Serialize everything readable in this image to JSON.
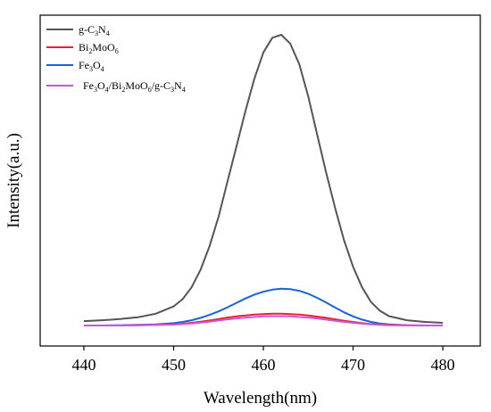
{
  "chart_data": {
    "type": "line",
    "xlabel": "Wavelength(nm)",
    "ylabel": "Intensity(a.u.)",
    "xlim": [
      435,
      482
    ],
    "ylim": [
      0,
      1.05
    ],
    "xticks": [
      440,
      450,
      460,
      470,
      480
    ],
    "yticks": [],
    "grid": false,
    "legend_position": "top-left",
    "x": [
      440,
      442,
      444,
      446,
      448,
      450,
      451,
      452,
      453,
      454,
      455,
      456,
      457,
      458,
      459,
      460,
      461,
      462,
      463,
      464,
      465,
      466,
      467,
      468,
      469,
      470,
      471,
      472,
      473,
      474,
      476,
      478,
      480
    ],
    "series": [
      {
        "name": "g-C3N4",
        "legend_parts": [
          [
            "g-C",
            ""
          ],
          [
            "3",
            "sub"
          ],
          [
            "N",
            ""
          ],
          [
            "4",
            "sub"
          ]
        ],
        "color": "#555555",
        "values": [
          0.015,
          0.018,
          0.022,
          0.028,
          0.04,
          0.065,
          0.09,
          0.13,
          0.19,
          0.27,
          0.37,
          0.49,
          0.61,
          0.73,
          0.84,
          0.93,
          0.98,
          0.99,
          0.96,
          0.89,
          0.78,
          0.65,
          0.52,
          0.4,
          0.29,
          0.2,
          0.13,
          0.08,
          0.05,
          0.032,
          0.018,
          0.012,
          0.009
        ]
      },
      {
        "name": "Bi2MoO6",
        "legend_parts": [
          [
            "Bi",
            ""
          ],
          [
            "2",
            "sub"
          ],
          [
            "MoO",
            ""
          ],
          [
            "6",
            "sub"
          ]
        ],
        "color": "#e8222e",
        "values": [
          0.0,
          0.0,
          0.0,
          0.001,
          0.002,
          0.004,
          0.006,
          0.009,
          0.013,
          0.017,
          0.022,
          0.027,
          0.031,
          0.034,
          0.037,
          0.039,
          0.04,
          0.04,
          0.039,
          0.037,
          0.034,
          0.03,
          0.026,
          0.021,
          0.016,
          0.012,
          0.008,
          0.005,
          0.003,
          0.002,
          0.001,
          0.0,
          0.0
        ]
      },
      {
        "name": "Fe3O4",
        "legend_parts": [
          [
            "Fe",
            ""
          ],
          [
            "3",
            "sub"
          ],
          [
            "O",
            ""
          ],
          [
            "4",
            "sub"
          ]
        ],
        "color": "#1565d8",
        "values": [
          0.0,
          0.0,
          0.001,
          0.002,
          0.004,
          0.008,
          0.012,
          0.018,
          0.026,
          0.036,
          0.048,
          0.062,
          0.077,
          0.092,
          0.105,
          0.115,
          0.122,
          0.125,
          0.124,
          0.118,
          0.108,
          0.094,
          0.078,
          0.061,
          0.045,
          0.031,
          0.02,
          0.012,
          0.007,
          0.004,
          0.001,
          0.0,
          0.0
        ]
      },
      {
        "name": "Fe3O4/Bi2MoO6/g-C3N4",
        "legend_parts": [
          [
            "Fe",
            ""
          ],
          [
            "3",
            "sub"
          ],
          [
            "O",
            ""
          ],
          [
            "4",
            "sub"
          ],
          [
            "/Bi",
            ""
          ],
          [
            "2",
            "sub"
          ],
          [
            "MoO",
            ""
          ],
          [
            "6",
            "sub"
          ],
          [
            "/g-C",
            ""
          ],
          [
            "3",
            "sub"
          ],
          [
            "N",
            ""
          ],
          [
            "4",
            "sub"
          ]
        ],
        "color": "#cc55dd",
        "values": [
          0.0,
          0.0,
          0.0,
          0.001,
          0.002,
          0.003,
          0.005,
          0.007,
          0.01,
          0.013,
          0.017,
          0.021,
          0.024,
          0.027,
          0.029,
          0.031,
          0.032,
          0.032,
          0.031,
          0.029,
          0.027,
          0.024,
          0.02,
          0.016,
          0.012,
          0.009,
          0.006,
          0.004,
          0.002,
          0.001,
          0.0,
          0.0,
          0.0
        ]
      }
    ]
  }
}
